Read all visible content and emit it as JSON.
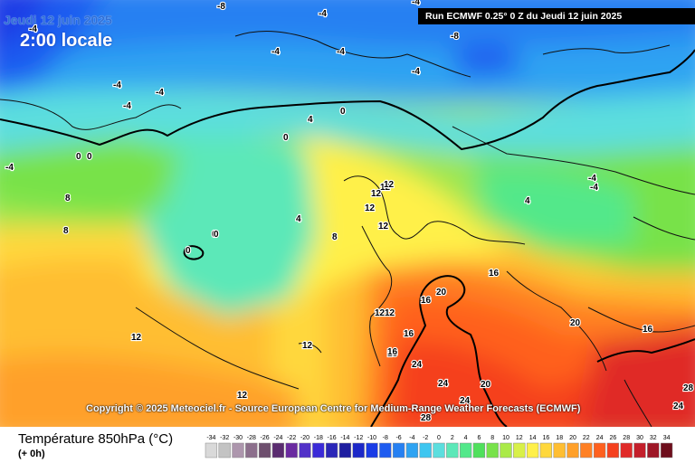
{
  "header": {
    "date_label": "Jeudi 12 juin 2025",
    "time_label": "2:00 locale",
    "run_label": "Run ECMWF 0.25° 0 Z du Jeudi 12 juin 2025"
  },
  "copyright": "Copyright © 2025 Meteociel.fr - Source European Centre for Medium-Range Weather Forecasts (ECMWF)",
  "footer": {
    "variable": "Température 850hPa (°C)",
    "lead": "(+ 0h)"
  },
  "legend": {
    "ticks": [
      "-34",
      "-32",
      "-30",
      "-28",
      "-26",
      "-24",
      "-22",
      "-20",
      "-18",
      "-16",
      "-14",
      "-12",
      "-10",
      "-8",
      "-6",
      "-4",
      "-2",
      "0",
      "2",
      "4",
      "6",
      "8",
      "10",
      "12",
      "14",
      "16",
      "18",
      "20",
      "22",
      "24",
      "26",
      "28",
      "30",
      "32",
      "34"
    ],
    "colors": [
      "#d9d9d9",
      "#c3c3c3",
      "#ad96ad",
      "#8c6f8c",
      "#6e4f6e",
      "#5a2c70",
      "#6a2aa0",
      "#5232c8",
      "#3a2ad8",
      "#2a26b8",
      "#1e1ea0",
      "#1c28c8",
      "#1a3ce6",
      "#1f5cf0",
      "#2680f2",
      "#2ea3f2",
      "#3ec6f0",
      "#5cdede",
      "#5ce8b8",
      "#52e88a",
      "#4fe05c",
      "#78e24a",
      "#aaea48",
      "#d8f048",
      "#fff04a",
      "#ffd83c",
      "#ffbe32",
      "#ffa02a",
      "#ff8024",
      "#ff601e",
      "#f5401e",
      "#e02a28",
      "#c41e2a",
      "#9e1626",
      "#6e0e1c"
    ]
  },
  "map_labels": [
    {
      "t": "-8"
    },
    {
      "t": "-4"
    },
    {
      "t": "-4"
    },
    {
      "t": "-4"
    },
    {
      "t": "-4"
    },
    {
      "t": "-4"
    },
    {
      "t": "-4"
    },
    {
      "t": "-4"
    },
    {
      "t": "-8"
    },
    {
      "t": "-4"
    },
    {
      "t": "-4"
    },
    {
      "t": "-4"
    },
    {
      "t": "0"
    },
    {
      "t": "0"
    },
    {
      "t": "0"
    },
    {
      "t": "0"
    },
    {
      "t": "4"
    },
    {
      "t": "0"
    },
    {
      "t": "-4"
    },
    {
      "t": "4"
    },
    {
      "t": "8"
    },
    {
      "t": "8"
    },
    {
      "t": "4"
    },
    {
      "t": "0"
    },
    {
      "t": "0"
    },
    {
      "t": "8"
    },
    {
      "t": "12"
    },
    {
      "t": "12"
    },
    {
      "t": "12"
    },
    {
      "t": "12"
    },
    {
      "t": "12"
    },
    {
      "t": "12"
    },
    {
      "t": "12"
    },
    {
      "t": "12"
    },
    {
      "t": "16"
    },
    {
      "t": "16"
    },
    {
      "t": "16"
    },
    {
      "t": "16"
    },
    {
      "t": "20"
    },
    {
      "t": "20"
    },
    {
      "t": "20"
    },
    {
      "t": "24"
    },
    {
      "t": "24"
    },
    {
      "t": "24"
    },
    {
      "t": "24"
    },
    {
      "t": "28"
    },
    {
      "t": "28"
    },
    {
      "t": "16"
    },
    {
      "t": "16"
    },
    {
      "t": "12"
    },
    {
      "t": "12"
    },
    {
      "t": "-4"
    }
  ]
}
